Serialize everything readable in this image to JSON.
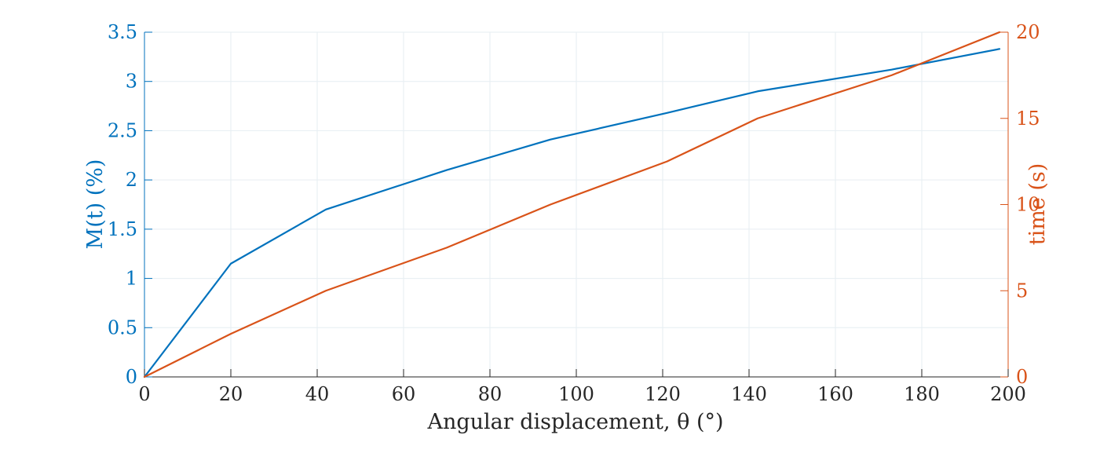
{
  "chart_data": {
    "type": "line",
    "xlabel": "Angular displacement, θ (°)",
    "ylabel_left": "M(t) (%)",
    "ylabel_right": "time (s)",
    "xlim": [
      0,
      200
    ],
    "ylim_left": [
      0,
      3.5
    ],
    "ylim_right": [
      0,
      20
    ],
    "xticks": [
      "0",
      "20",
      "40",
      "60",
      "80",
      "100",
      "120",
      "140",
      "160",
      "180",
      "200"
    ],
    "yticks_left": [
      "0",
      "0.5",
      "1",
      "1.5",
      "2",
      "2.5",
      "3",
      "3.5"
    ],
    "yticks_right": [
      "0",
      "5",
      "10",
      "15",
      "20"
    ],
    "grid": true,
    "colors": {
      "left": "#0072BD",
      "right": "#D95319",
      "axis": "#262626",
      "grid": "#E6EEF2"
    },
    "series": [
      {
        "axis": "left",
        "x": [
          0,
          20,
          42,
          70,
          94,
          121,
          142,
          173,
          198
        ],
        "values": [
          0,
          1.15,
          1.7,
          2.1,
          2.41,
          2.68,
          2.9,
          3.12,
          3.33
        ]
      },
      {
        "axis": "right",
        "x": [
          0,
          20,
          42,
          70,
          94,
          121,
          142,
          173,
          198
        ],
        "values": [
          0,
          2.5,
          5.0,
          7.5,
          10.0,
          12.5,
          15.0,
          17.5,
          20.0
        ]
      }
    ]
  }
}
